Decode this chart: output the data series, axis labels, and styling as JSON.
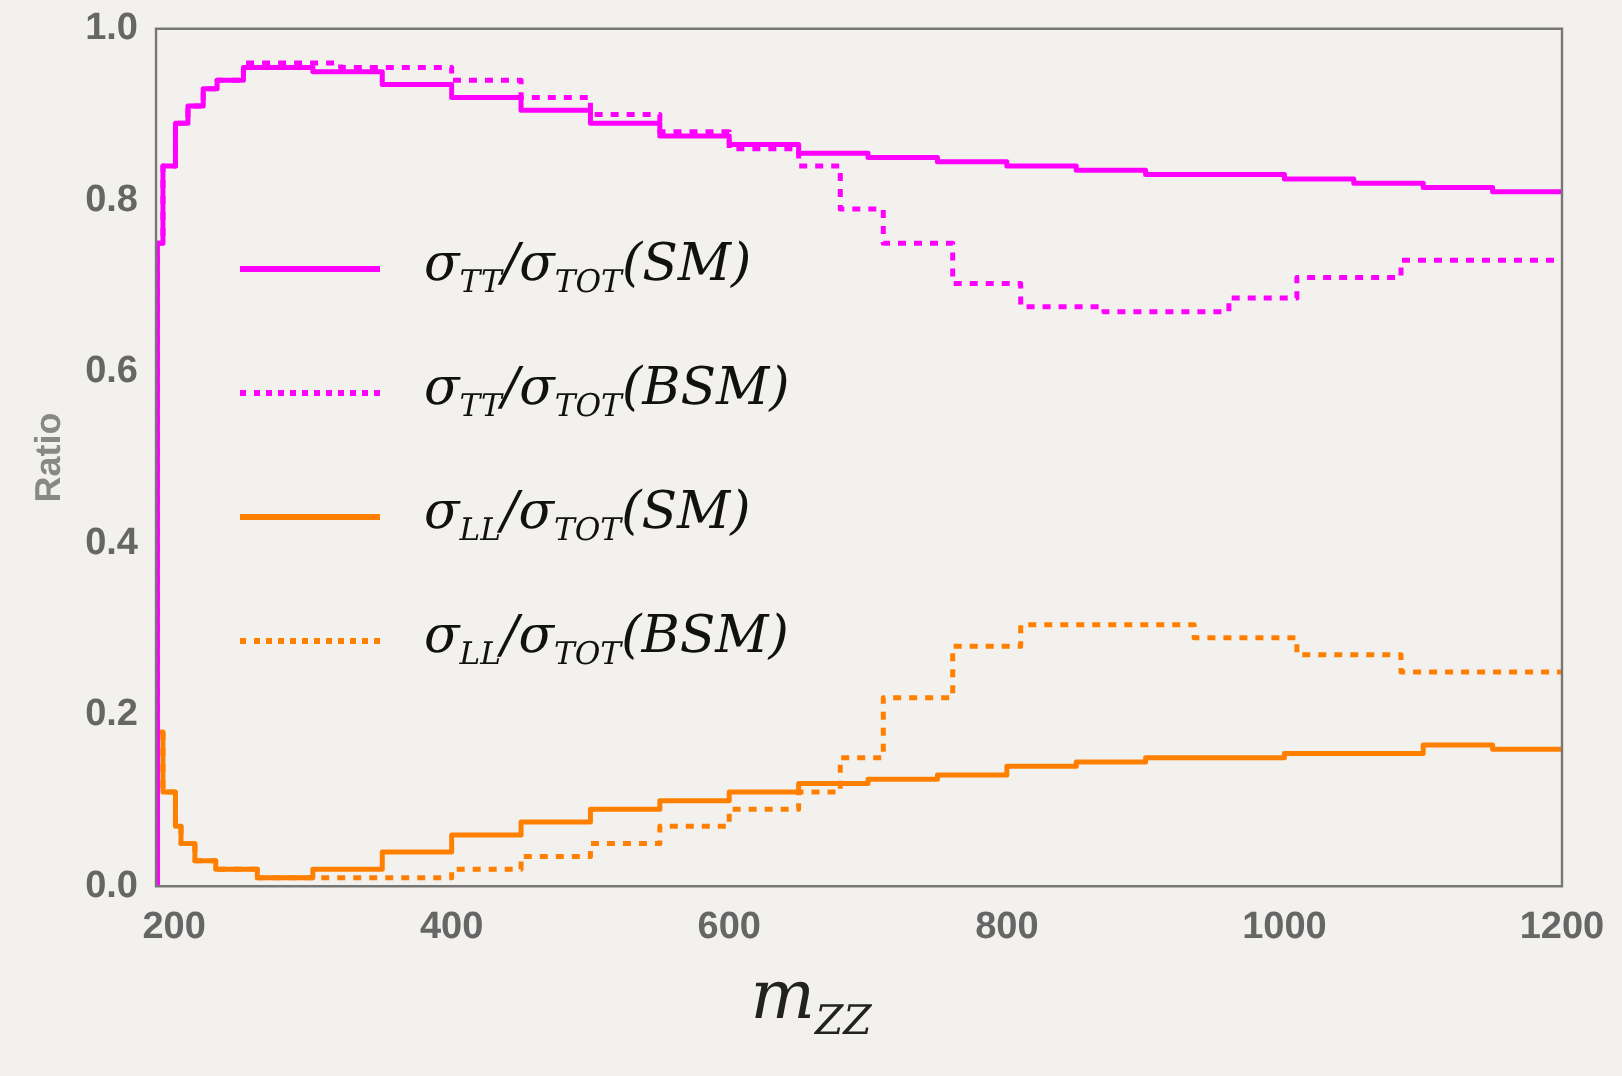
{
  "chart_data": {
    "type": "step",
    "xlabel": "m$_{ZZ}$",
    "ylabel": "Ratio",
    "xlim": [
      187,
      1200
    ],
    "ylim": [
      0,
      1
    ],
    "xticks": [
      200,
      400,
      600,
      800,
      1000,
      1200
    ],
    "yticks": [
      {
        "value": 0,
        "label": "0.0"
      },
      {
        "value": 0.2,
        "label": "0.2"
      },
      {
        "value": 0.4,
        "label": "0.4"
      },
      {
        "value": 0.6,
        "label": "0.6"
      },
      {
        "value": 0.8,
        "label": "0.8"
      },
      {
        "value": 1,
        "label": "1.0"
      }
    ],
    "grid": false,
    "legend": "left",
    "marker": "none",
    "series": [
      {
        "name": "σ$_{TT}$/σ$_{TOT}$(SM)",
        "color": "#ff00ff",
        "line_style": "solid",
        "x": [
          188,
          192,
          201,
          210,
          221,
          231,
          250,
          300,
          350,
          400,
          450,
          500,
          550,
          600,
          650,
          700,
          750,
          800,
          850,
          900,
          950,
          1000,
          1050,
          1100,
          1150,
          1200
        ],
        "values": [
          0,
          0.75,
          0.84,
          0.89,
          0.91,
          0.93,
          0.94,
          0.955,
          0.95,
          0.935,
          0.92,
          0.905,
          0.89,
          0.875,
          0.865,
          0.855,
          0.85,
          0.845,
          0.84,
          0.835,
          0.83,
          0.83,
          0.825,
          0.82,
          0.815,
          0.81
        ]
      },
      {
        "name": "σ$_{TT}$/σ$_{TOT}$(BSM)",
        "color": "#ff00ff",
        "line_style": "dotted",
        "x": [
          188,
          192,
          201,
          210,
          221,
          231,
          250,
          320,
          400,
          450,
          500,
          550,
          600,
          650,
          680,
          711,
          761,
          810,
          870,
          910,
          960,
          1009,
          1084,
          1200
        ],
        "values": [
          0,
          0.75,
          0.84,
          0.89,
          0.91,
          0.93,
          0.94,
          0.96,
          0.955,
          0.94,
          0.92,
          0.9,
          0.88,
          0.86,
          0.84,
          0.79,
          0.75,
          0.703,
          0.676,
          0.67,
          0.67,
          0.686,
          0.71,
          0.73
        ]
      },
      {
        "name": "σ$_{LL}$/σ$_{TOT}$(SM)",
        "color": "#ff8000",
        "line_style": "solid",
        "x": [
          188,
          192,
          201,
          205,
          215,
          230,
          260,
          300,
          350,
          400,
          450,
          500,
          550,
          600,
          650,
          700,
          750,
          800,
          850,
          900,
          1000,
          1100,
          1150,
          1200
        ],
        "values": [
          0,
          0.18,
          0.11,
          0.07,
          0.05,
          0.03,
          0.02,
          0.01,
          0.02,
          0.04,
          0.06,
          0.075,
          0.09,
          0.1,
          0.11,
          0.12,
          0.125,
          0.13,
          0.14,
          0.145,
          0.15,
          0.155,
          0.165,
          0.16
        ]
      },
      {
        "name": "σ$_{LL}$/σ$_{TOT}$(BSM)",
        "color": "#ff8000",
        "line_style": "dotted",
        "x": [
          188,
          192,
          201,
          205,
          215,
          230,
          260,
          300,
          400,
          450,
          500,
          550,
          600,
          650,
          680,
          711,
          761,
          810,
          885,
          935,
          1009,
          1084,
          1200
        ],
        "values": [
          0,
          0.18,
          0.11,
          0.07,
          0.05,
          0.03,
          0.02,
          0.01,
          0.01,
          0.02,
          0.035,
          0.05,
          0.07,
          0.09,
          0.11,
          0.15,
          0.22,
          0.28,
          0.305,
          0.305,
          0.29,
          0.27,
          0.25
        ]
      }
    ]
  }
}
